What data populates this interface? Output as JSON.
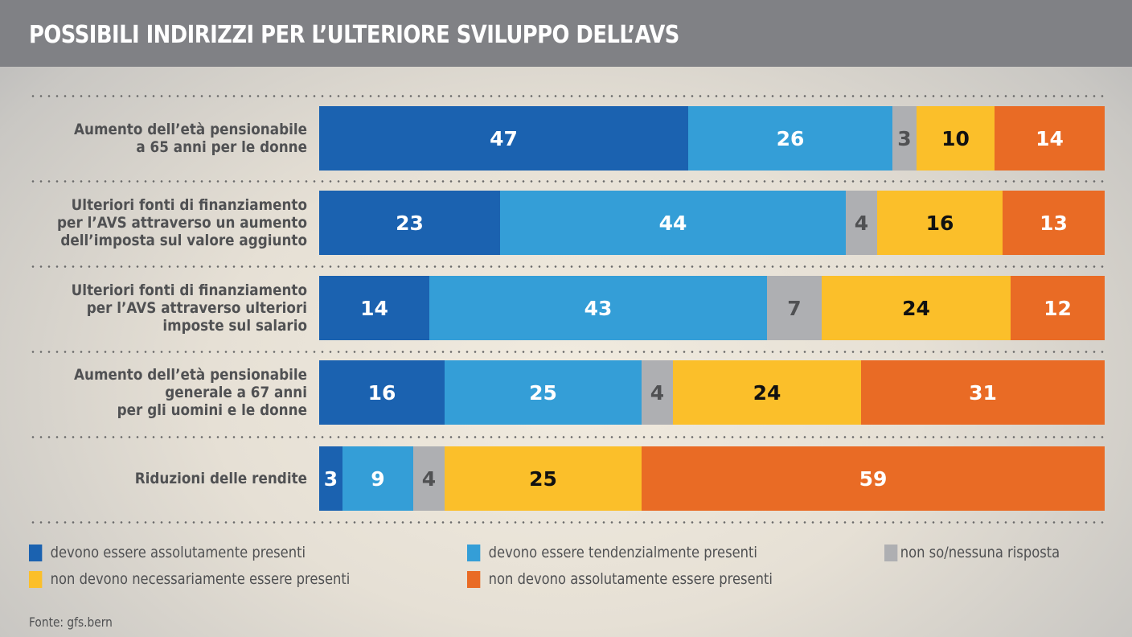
{
  "header": {
    "title": "POSSIBILI INDIRIZZI PER L’ULTERIORE SVILUPPO DELL’AVS"
  },
  "chart_data": {
    "type": "bar",
    "orientation": "horizontal",
    "stacked": true,
    "normalized_to": 100,
    "title": "POSSIBILI INDIRIZZI PER L’ULTERIORE SVILUPPO DELL’AVS",
    "xlabel": "",
    "ylabel": "",
    "xlim": [
      0,
      100
    ],
    "grid": false,
    "legend_position": "bottom",
    "categories": [
      [
        "Aumento dell’età pensionabile",
        "a 65 anni per le donne"
      ],
      [
        "Ulteriori fonti di finanziamento",
        "per l’AVS attraverso un aumento",
        "dell’imposta sul valore aggiunto"
      ],
      [
        "Ulteriori fonti di finanziamento",
        "per l’AVS attraverso ulteriori",
        "imposte sul salario"
      ],
      [
        "Aumento dell’età pensionabile",
        "generale a 67 anni",
        "per gli uomini e le donne"
      ],
      [
        "Riduzioni delle rendite"
      ]
    ],
    "series": [
      {
        "name": "devono essere assolutamente presenti",
        "color": "#1b62b0",
        "label_color": "#ffffff",
        "values": [
          47,
          23,
          14,
          16,
          3
        ]
      },
      {
        "name": "devono essere tendenzialmente presenti",
        "color": "#349ed7",
        "label_color": "#ffffff",
        "values": [
          26,
          44,
          43,
          25,
          9
        ]
      },
      {
        "name": "non so/nessuna risposta",
        "color": "#aeafb2",
        "label_color": "#505153",
        "values": [
          3,
          4,
          7,
          4,
          4
        ]
      },
      {
        "name": "non devono necessariamente essere presenti",
        "color": "#fbbf2a",
        "label_color": "#111111",
        "values": [
          10,
          16,
          24,
          24,
          25
        ]
      },
      {
        "name": "non devono assolutamente essere presenti",
        "color": "#e96b25",
        "label_color": "#ffffff",
        "values": [
          14,
          13,
          12,
          31,
          59
        ]
      }
    ],
    "data_labels": true
  },
  "legend": {
    "items": [
      {
        "label": "devono essere assolutamente presenti",
        "color": "#1b62b0"
      },
      {
        "label": "devono essere tendenzialmente presenti",
        "color": "#349ed7"
      },
      {
        "label": "non so/nessuna risposta",
        "color": "#aeafb2"
      },
      {
        "label": "non devono necessariamente essere presenti",
        "color": "#fbbf2a"
      },
      {
        "label": "non devono assolutamente essere presenti",
        "color": "#e96b25"
      }
    ]
  },
  "footer": {
    "source": "Fonte: gfs.bern"
  }
}
